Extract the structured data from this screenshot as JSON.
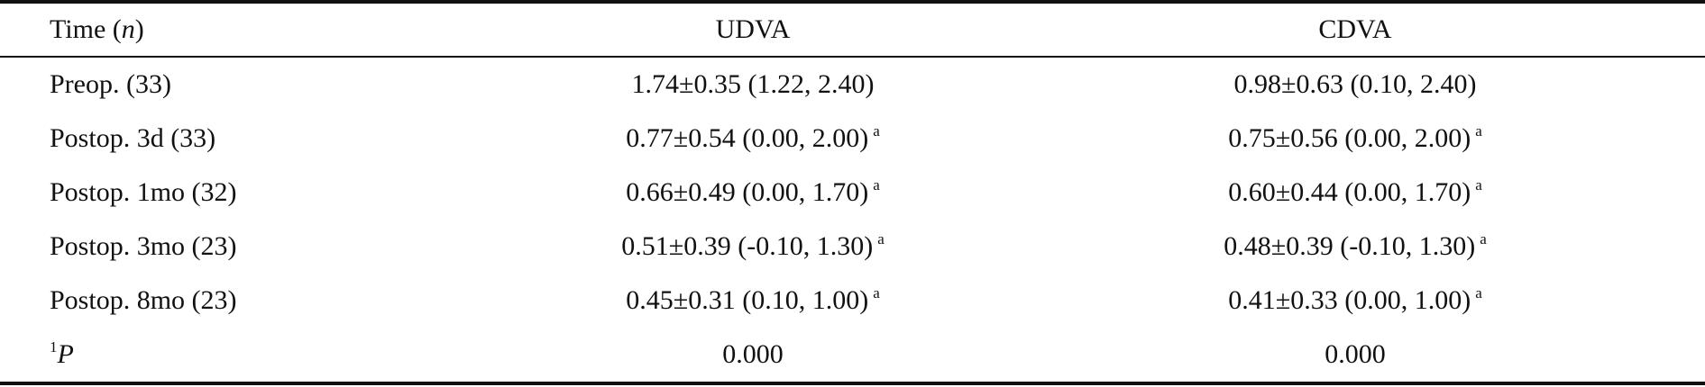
{
  "table": {
    "header": [
      {
        "text": "Time (",
        "italic": "n",
        "tail": ")"
      },
      "UDVA",
      "CDVA"
    ],
    "rows": [
      [
        "Preop. (33)",
        {
          "text": "1.74±0.35 (1.22, 2.40)"
        },
        {
          "text": "0.98±0.63 (0.10, 2.40)"
        }
      ],
      [
        "Postop. 3d (33)",
        {
          "text": "0.77±0.54 (0.00, 2.00)",
          "sup": "a"
        },
        {
          "text": "0.75±0.56 (0.00, 2.00)",
          "sup": "a"
        }
      ],
      [
        "Postop. 1mo (32)",
        {
          "text": "0.66±0.49 (0.00, 1.70)",
          "sup": "a"
        },
        {
          "text": "0.60±0.44 (0.00, 1.70)",
          "sup": "a"
        }
      ],
      [
        "Postop. 3mo (23)",
        {
          "text": "0.51±0.39 (-0.10, 1.30)",
          "sup": "a"
        },
        {
          "text": "0.48±0.39 (-0.10, 1.30)",
          "sup": "a"
        }
      ],
      [
        "Postop. 8mo (23)",
        {
          "text": "0.45±0.31 (0.10, 1.00)",
          "sup": "a"
        },
        {
          "text": "0.41±0.33 (0.00, 1.00)",
          "sup": "a"
        }
      ],
      [
        {
          "sup": "1",
          "italic": "P"
        },
        {
          "text": "0.000"
        },
        {
          "text": "0.000"
        }
      ]
    ]
  }
}
